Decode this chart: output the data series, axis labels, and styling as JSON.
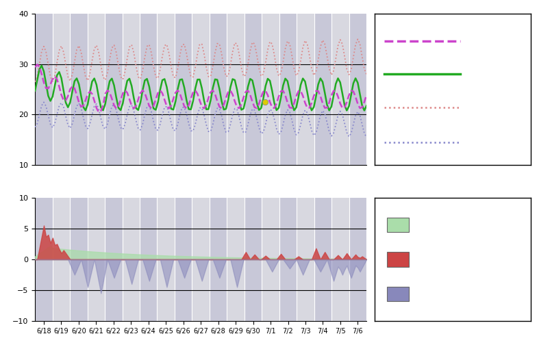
{
  "dates": [
    "6/18",
    "6/19",
    "6/20",
    "6/21",
    "6/22",
    "6/23",
    "6/24",
    "6/25",
    "6/26",
    "6/27",
    "6/28",
    "6/29",
    "6/30",
    "7/1",
    "7/2",
    "7/3",
    "7/4",
    "7/5",
    "7/6"
  ],
  "n_days": 19,
  "ylim1": [
    10,
    40
  ],
  "yticks1": [
    10,
    20,
    30,
    40
  ],
  "ylim2": [
    -10,
    10
  ],
  "yticks2": [
    -10,
    -5,
    0,
    5,
    10
  ],
  "plot_bg": "#d8d8e0",
  "green_color": "#22aa22",
  "purple_color": "#cc44cc",
  "red_dot_color": "#dd8888",
  "blue_dot_color": "#8888cc",
  "green_fill_color": "#aaddaa",
  "red_bar_color": "#cc4444",
  "blue_bar_color": "#8888bb",
  "yellow_dot_color": "#ddcc00"
}
